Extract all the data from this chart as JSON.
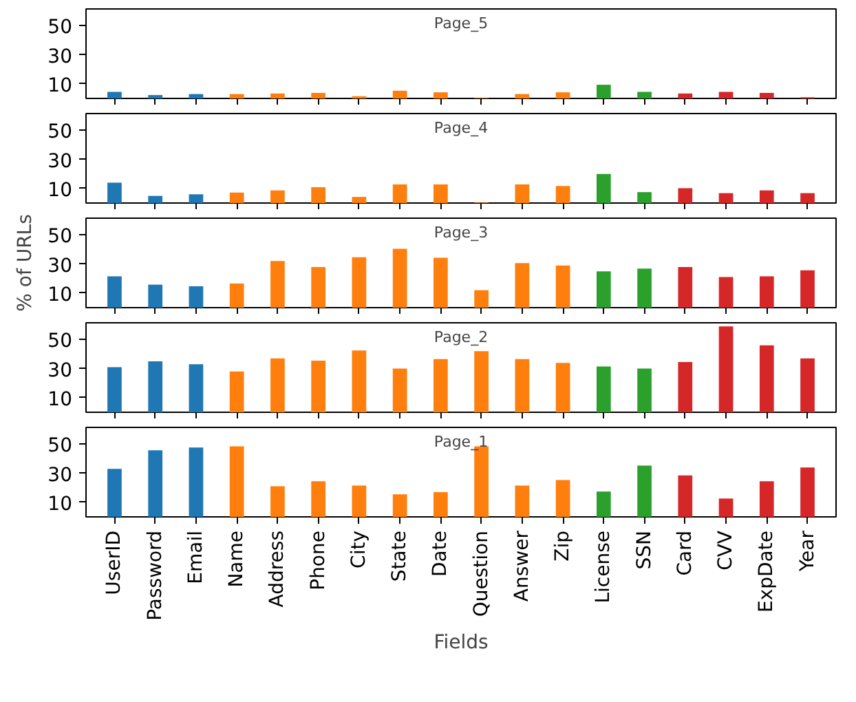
{
  "chart_data": [
    {
      "type": "bar",
      "title": "Page_5",
      "categories": [
        "UserID",
        "Password",
        "Email",
        "Name",
        "Address",
        "Phone",
        "City",
        "State",
        "Date",
        "Question",
        "Answer",
        "Zip",
        "License",
        "SSN",
        "Card",
        "CVV",
        "ExpDate",
        "Year"
      ],
      "values": [
        4.5,
        2.3,
        3,
        3,
        3.4,
        3.8,
        1.5,
        5.3,
        4.2,
        0.3,
        3,
        4.2,
        9.4,
        4.5,
        3.4,
        4.5,
        3.8,
        0.8
      ],
      "colors": [
        "#1f77b4",
        "#1f77b4",
        "#1f77b4",
        "#ff7f0e",
        "#ff7f0e",
        "#ff7f0e",
        "#ff7f0e",
        "#ff7f0e",
        "#ff7f0e",
        "#ff7f0e",
        "#ff7f0e",
        "#ff7f0e",
        "#2ca02c",
        "#2ca02c",
        "#d62728",
        "#d62728",
        "#d62728",
        "#d62728"
      ],
      "ylim": [
        0,
        61.5
      ],
      "yticks": [
        10,
        30,
        50
      ],
      "tick_labels": "y"
    },
    {
      "type": "bar",
      "title": "Page_4",
      "categories": [
        "UserID",
        "Password",
        "Email",
        "Name",
        "Address",
        "Phone",
        "City",
        "State",
        "Date",
        "Question",
        "Answer",
        "Zip",
        "License",
        "SSN",
        "Card",
        "CVV",
        "ExpDate",
        "Year"
      ],
      "values": [
        14,
        4.9,
        6,
        7.2,
        8.7,
        10.9,
        4.2,
        12.8,
        12.8,
        0.3,
        12.8,
        11.7,
        20,
        7.5,
        10.2,
        6.8,
        8.7,
        6.8
      ],
      "colors": [
        "#1f77b4",
        "#1f77b4",
        "#1f77b4",
        "#ff7f0e",
        "#ff7f0e",
        "#ff7f0e",
        "#ff7f0e",
        "#ff7f0e",
        "#ff7f0e",
        "#ff7f0e",
        "#ff7f0e",
        "#ff7f0e",
        "#2ca02c",
        "#2ca02c",
        "#d62728",
        "#d62728",
        "#d62728",
        "#d62728"
      ],
      "ylim": [
        0,
        61.5
      ],
      "yticks": [
        10,
        30,
        50
      ],
      "tick_labels": "y"
    },
    {
      "type": "bar",
      "title": "Page_3",
      "ylabel": "% of URLs",
      "categories": [
        "UserID",
        "Password",
        "Email",
        "Name",
        "Address",
        "Phone",
        "City",
        "State",
        "Date",
        "Question",
        "Answer",
        "Zip",
        "License",
        "SSN",
        "Card",
        "CVV",
        "ExpDate",
        "Year"
      ],
      "values": [
        21.5,
        15.8,
        14.7,
        16.6,
        32,
        27.9,
        34.7,
        40.4,
        34.3,
        12,
        30.6,
        29,
        24.9,
        26.8,
        27.9,
        21.1,
        21.5,
        25.7
      ],
      "colors": [
        "#1f77b4",
        "#1f77b4",
        "#1f77b4",
        "#ff7f0e",
        "#ff7f0e",
        "#ff7f0e",
        "#ff7f0e",
        "#ff7f0e",
        "#ff7f0e",
        "#ff7f0e",
        "#ff7f0e",
        "#ff7f0e",
        "#2ca02c",
        "#2ca02c",
        "#d62728",
        "#d62728",
        "#d62728",
        "#d62728"
      ],
      "ylim": [
        0,
        61.5
      ],
      "yticks": [
        10,
        30,
        50
      ],
      "tick_labels": "y"
    },
    {
      "type": "bar",
      "title": "Page_2",
      "categories": [
        "UserID",
        "Password",
        "Email",
        "Name",
        "Address",
        "Phone",
        "City",
        "State",
        "Date",
        "Question",
        "Answer",
        "Zip",
        "License",
        "SSN",
        "Card",
        "CVV",
        "ExpDate",
        "Year"
      ],
      "values": [
        31,
        35,
        33,
        28,
        37,
        35.5,
        42.5,
        30,
        36.5,
        42,
        36.5,
        34,
        31.5,
        30,
        34.5,
        59,
        46,
        37
      ],
      "colors": [
        "#1f77b4",
        "#1f77b4",
        "#1f77b4",
        "#ff7f0e",
        "#ff7f0e",
        "#ff7f0e",
        "#ff7f0e",
        "#ff7f0e",
        "#ff7f0e",
        "#ff7f0e",
        "#ff7f0e",
        "#ff7f0e",
        "#2ca02c",
        "#2ca02c",
        "#d62728",
        "#d62728",
        "#d62728",
        "#d62728"
      ],
      "ylim": [
        0,
        61.5
      ],
      "yticks": [
        10,
        30,
        50
      ],
      "tick_labels": "y"
    },
    {
      "type": "bar",
      "title": "Page_1",
      "xlabel": "Fields",
      "categories": [
        "UserID",
        "Password",
        "Email",
        "Name",
        "Address",
        "Phone",
        "City",
        "State",
        "Date",
        "Question",
        "Answer",
        "Zip",
        "License",
        "SSN",
        "Card",
        "CVV",
        "ExpDate",
        "Year"
      ],
      "values": [
        33,
        45.8,
        47.7,
        48.5,
        21.1,
        24.5,
        21.5,
        15.5,
        17,
        48.5,
        21.5,
        25.3,
        17.4,
        35.2,
        28.5,
        12.6,
        24.5,
        34
      ],
      "colors": [
        "#1f77b4",
        "#1f77b4",
        "#1f77b4",
        "#ff7f0e",
        "#ff7f0e",
        "#ff7f0e",
        "#ff7f0e",
        "#ff7f0e",
        "#ff7f0e",
        "#ff7f0e",
        "#ff7f0e",
        "#ff7f0e",
        "#2ca02c",
        "#2ca02c",
        "#d62728",
        "#d62728",
        "#d62728",
        "#d62728"
      ],
      "ylim": [
        0,
        61.5
      ],
      "yticks": [
        10,
        30,
        50
      ]
    }
  ]
}
